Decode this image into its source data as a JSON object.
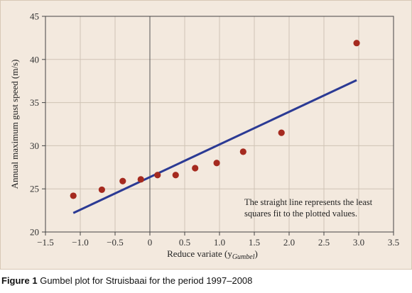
{
  "caption": {
    "label": "Figure 1",
    "text": "Gumbel plot for Struisbaai for the period 1997–2008"
  },
  "colors": {
    "background": "#f3e9de",
    "point": "#a52a1f",
    "fit_line": "#2b3a94",
    "grid": "#cfc3b5",
    "zero_line": "#555555"
  },
  "chart_data": {
    "type": "scatter",
    "title": "",
    "xlabel_main": "Reduce variate (y",
    "xlabel_sub": "Gumbel",
    "xlabel_end": ")",
    "ylabel": "Annual maximum gust speed (m/s)",
    "xlim": [
      -1.5,
      3.5
    ],
    "ylim": [
      20,
      45
    ],
    "x_ticks": [
      -1.5,
      -1.0,
      -0.5,
      0,
      0.5,
      1.0,
      1.5,
      2.0,
      2.5,
      3.0,
      3.5
    ],
    "x_tick_labels": [
      "−1.5",
      "−1.0",
      "−0.5",
      "0",
      "0.5",
      "1.0",
      "1.5",
      "2.0",
      "2.5",
      "3.0",
      "3.5"
    ],
    "y_ticks": [
      20,
      25,
      30,
      35,
      40,
      45
    ],
    "y_tick_labels": [
      "20",
      "25",
      "30",
      "35",
      "40",
      "45"
    ],
    "grid": true,
    "zero_line": true,
    "points": {
      "x": [
        -1.1,
        -0.69,
        -0.39,
        -0.13,
        0.11,
        0.37,
        0.65,
        0.96,
        1.34,
        1.89,
        2.97
      ],
      "y": [
        24.2,
        24.9,
        25.9,
        26.1,
        26.6,
        26.6,
        27.4,
        28.0,
        29.3,
        31.5,
        41.9
      ]
    },
    "fit_line": {
      "x": [
        -1.1,
        2.97
      ],
      "y": [
        22.2,
        37.6
      ]
    },
    "annotation": [
      "The straight line represents the least",
      "squares fit to the plotted values."
    ]
  }
}
